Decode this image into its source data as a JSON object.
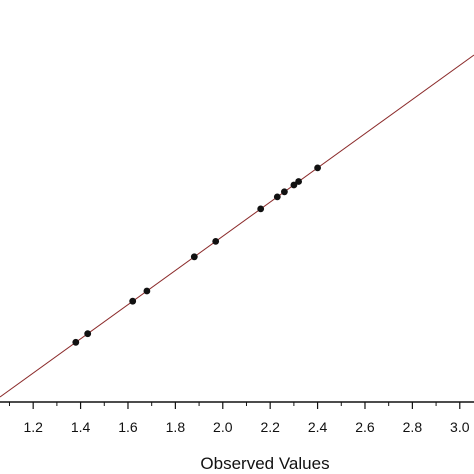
{
  "chart_data": {
    "type": "scatter",
    "xlabel": "Observed Values",
    "ylabel": "",
    "xlim": [
      1.06,
      3.06
    ],
    "ylim": [
      1.06,
      3.06
    ],
    "x_ticks": [
      "1.2",
      "1.4",
      "1.6",
      "1.8",
      "2.0",
      "2.2",
      "2.4",
      "2.6",
      "2.8",
      "3.0"
    ],
    "grid": false,
    "colors": {
      "points": "#111111",
      "fit_line": "#8b2a2a"
    },
    "series": [
      {
        "points": [
          {
            "x": 1.38,
            "y": 1.38
          },
          {
            "x": 1.43,
            "y": 1.43
          },
          {
            "x": 1.62,
            "y": 1.62
          },
          {
            "x": 1.68,
            "y": 1.68
          },
          {
            "x": 1.88,
            "y": 1.88
          },
          {
            "x": 1.97,
            "y": 1.97
          },
          {
            "x": 2.16,
            "y": 2.16
          },
          {
            "x": 2.23,
            "y": 2.23
          },
          {
            "x": 2.26,
            "y": 2.26
          },
          {
            "x": 2.3,
            "y": 2.3
          },
          {
            "x": 2.32,
            "y": 2.32
          },
          {
            "x": 2.4,
            "y": 2.4
          }
        ]
      }
    ],
    "fit_line": {
      "x": [
        1.06,
        3.06
      ],
      "y": [
        1.06,
        3.06
      ]
    }
  }
}
